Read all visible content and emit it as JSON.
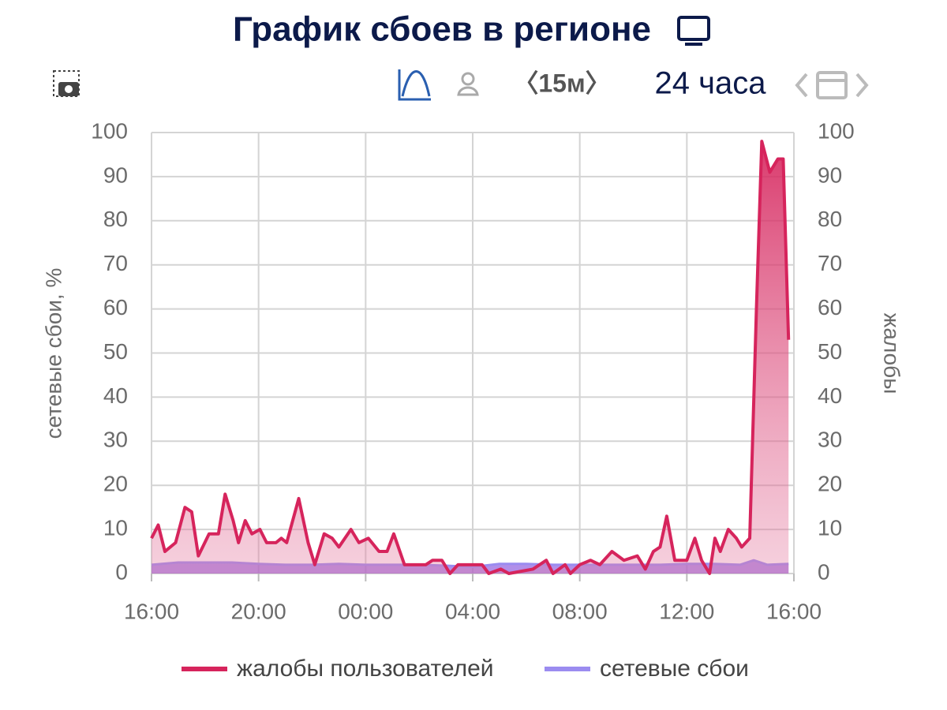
{
  "chart_data": {
    "type": "line",
    "title": "График сбоев в регионе",
    "toolbar": {
      "interval": "〈15м〉",
      "range": "24 часа"
    },
    "ylabel": "сетевые сбои, %",
    "y2label": "жалобы",
    "xlim": [
      0,
      24
    ],
    "xticks": [
      {
        "value": 0,
        "label": "16:00"
      },
      {
        "value": 4,
        "label": "20:00"
      },
      {
        "value": 8,
        "label": "00:00"
      },
      {
        "value": 12,
        "label": "04:00"
      },
      {
        "value": 16,
        "label": "08:00"
      },
      {
        "value": 20,
        "label": "12:00"
      },
      {
        "value": 24,
        "label": "16:00"
      }
    ],
    "ylim": [
      0,
      100
    ],
    "yticks": [
      0,
      10,
      20,
      30,
      40,
      50,
      60,
      70,
      80,
      90,
      100
    ],
    "y2lim": [
      0,
      100
    ],
    "y2ticks": [
      0,
      10,
      20,
      30,
      40,
      50,
      60,
      70,
      80,
      90,
      100
    ],
    "grid": true,
    "legend": "bottom",
    "series": [
      {
        "name": "жалобы пользователей",
        "color": "#d6245c",
        "axis": "y2",
        "x": [
          0,
          0.25,
          0.5,
          0.9,
          1.25,
          1.5,
          1.75,
          2.15,
          2.5,
          2.75,
          3.05,
          3.25,
          3.5,
          3.75,
          4.05,
          4.3,
          4.65,
          4.85,
          5.05,
          5.5,
          5.85,
          6.1,
          6.45,
          6.75,
          7.0,
          7.45,
          7.75,
          8.1,
          8.5,
          8.8,
          9.05,
          9.45,
          10.25,
          10.5,
          10.85,
          11.15,
          11.45,
          12.35,
          12.6,
          13.05,
          13.35,
          14.25,
          14.75,
          15,
          15.45,
          15.65,
          16,
          16.4,
          16.75,
          17.2,
          17.65,
          18.15,
          18.45,
          18.75,
          19,
          19.25,
          19.55,
          20,
          20.3,
          20.55,
          20.85,
          21.05,
          21.25,
          21.55,
          21.85,
          22.05,
          22.35,
          22.6,
          22.8,
          23.1,
          23.4,
          23.6,
          23.8
        ],
        "values": [
          8,
          11,
          5,
          7,
          15,
          14,
          4,
          9,
          9,
          18,
          12,
          7,
          12,
          9,
          10,
          7,
          7,
          8,
          7,
          17,
          7,
          2,
          9,
          8,
          6,
          10,
          7,
          8,
          5,
          5,
          9,
          2,
          2,
          3,
          3,
          0,
          2,
          2,
          0,
          1,
          0,
          1,
          3,
          0,
          2,
          0,
          2,
          3,
          2,
          5,
          3,
          4,
          1,
          5,
          6,
          13,
          3,
          3,
          8,
          3,
          0,
          8,
          5,
          10,
          8,
          6,
          8,
          60,
          98,
          91,
          94,
          94,
          53
        ]
      },
      {
        "name": "сетевые сбои",
        "color": "#9b8cf0",
        "axis": "y",
        "x": [
          0,
          1,
          2,
          3,
          4,
          5,
          6,
          7,
          8,
          9,
          10,
          11,
          12,
          13,
          14,
          15,
          16,
          17,
          18,
          19,
          20,
          21,
          22,
          22.5,
          23,
          23.8
        ],
        "values": [
          2,
          2.5,
          2.5,
          2.5,
          2.2,
          2,
          2,
          2.2,
          2,
          2,
          2,
          1.8,
          1.5,
          2.2,
          2.2,
          2,
          2,
          2,
          2,
          2,
          2.2,
          2.2,
          2,
          3,
          2,
          2.2
        ]
      }
    ]
  }
}
